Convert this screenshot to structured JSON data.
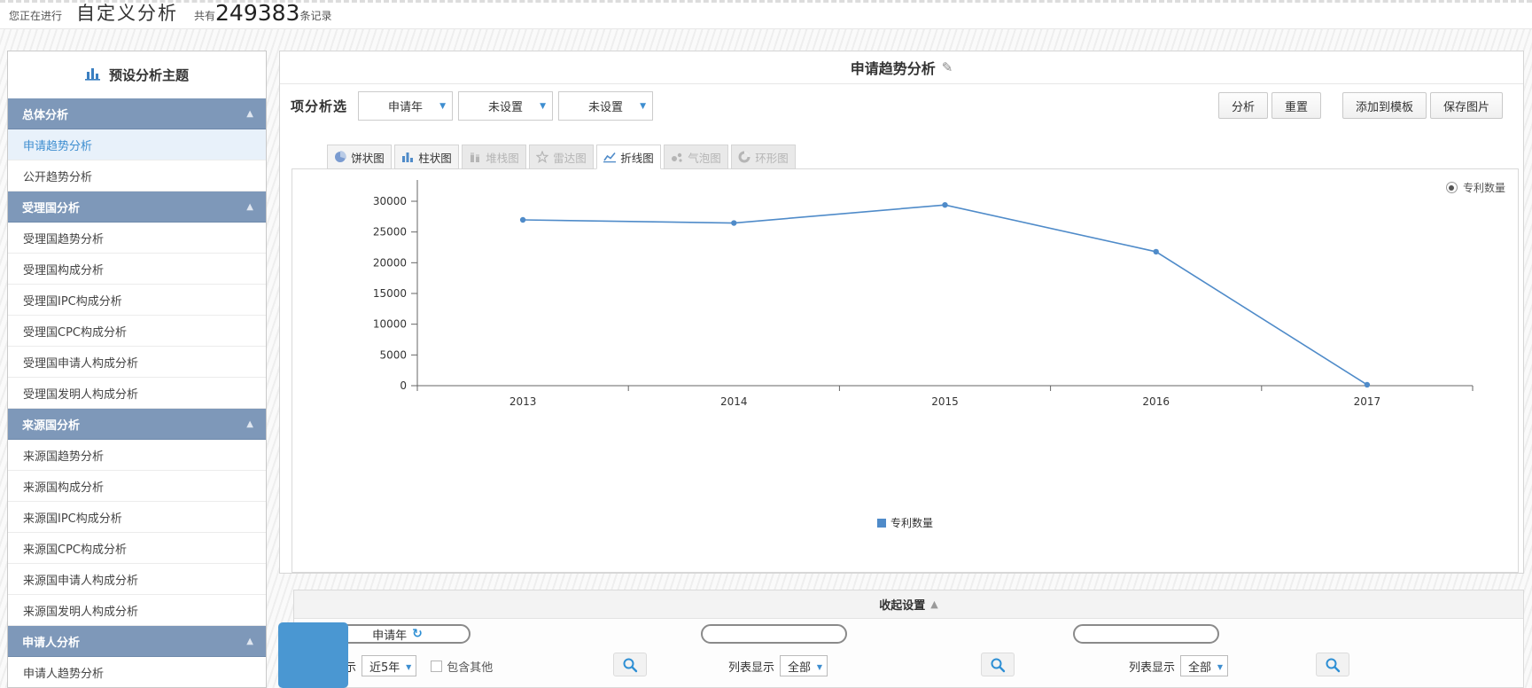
{
  "top_bar": {
    "prefix": "您正在进行",
    "title": "自定义分析",
    "count_prefix": "共有",
    "count": "249383",
    "count_suffix": "条记录"
  },
  "sidebar": {
    "header": "预设分析主题",
    "sections": [
      {
        "label": "总体分析",
        "items": [
          {
            "label": "申请趋势分析",
            "active": true
          },
          {
            "label": "公开趋势分析",
            "active": false
          }
        ]
      },
      {
        "label": "受理国分析",
        "items": [
          {
            "label": "受理国趋势分析"
          },
          {
            "label": "受理国构成分析"
          },
          {
            "label": "受理国IPC构成分析"
          },
          {
            "label": "受理国CPC构成分析"
          },
          {
            "label": "受理国申请人构成分析"
          },
          {
            "label": "受理国发明人构成分析"
          }
        ]
      },
      {
        "label": "来源国分析",
        "items": [
          {
            "label": "来源国趋势分析"
          },
          {
            "label": "来源国构成分析"
          },
          {
            "label": "来源国IPC构成分析"
          },
          {
            "label": "来源国CPC构成分析"
          },
          {
            "label": "来源国申请人构成分析"
          },
          {
            "label": "来源国发明人构成分析"
          }
        ]
      },
      {
        "label": "申请人分析",
        "items": [
          {
            "label": "申请人趋势分析"
          }
        ]
      }
    ]
  },
  "main": {
    "title": "申请趋势分析",
    "filter_label": "项分析选",
    "dropdowns": [
      "申请年",
      "未设置",
      "未设置"
    ],
    "buttons": [
      "分析",
      "重置",
      "添加到模板",
      "保存图片"
    ],
    "tabs": [
      {
        "label": "饼状图",
        "icon": "pie",
        "state": "enabled"
      },
      {
        "label": "柱状图",
        "icon": "bar",
        "state": "enabled"
      },
      {
        "label": "堆栈图",
        "icon": "stack",
        "state": "disabled"
      },
      {
        "label": "雷达图",
        "icon": "radar",
        "state": "disabled"
      },
      {
        "label": "折线图",
        "icon": "line",
        "state": "active"
      },
      {
        "label": "气泡图",
        "icon": "bubble",
        "state": "disabled"
      },
      {
        "label": "环形图",
        "icon": "ring",
        "state": "disabled"
      }
    ],
    "legend_radio": "专利数量",
    "bottom_legend": "专利数量"
  },
  "chart_data": {
    "type": "line",
    "title": "申请趋势分析",
    "categories": [
      "2013",
      "2014",
      "2015",
      "2016",
      "2017"
    ],
    "series": [
      {
        "name": "专利数量",
        "values": [
          26970,
          26460,
          29400,
          21790,
          150
        ]
      }
    ],
    "xlabel": "",
    "ylabel": "",
    "ylim": [
      0,
      30000
    ],
    "ytick_step": 5000,
    "grid": false,
    "legend_position": "bottom-center"
  },
  "settings": {
    "toggle_label": "收起设置",
    "columns": [
      {
        "pill": "申请年",
        "refresh_icon": true,
        "list_label": "列表显示",
        "list_value": "近5年",
        "checkbox_label": "包含其他",
        "checkbox_checked": false
      },
      {
        "pill": "",
        "refresh_icon": false,
        "list_label": "列表显示",
        "list_value": "全部"
      },
      {
        "pill": "",
        "refresh_icon": false,
        "list_label": "列表显示",
        "list_value": "全部"
      }
    ]
  },
  "colors": {
    "accent": "#3e8ed0",
    "series_line": "#4f8bc9",
    "section_header_bg": "#7e98b9",
    "search_icon": "#2e8fd4"
  }
}
